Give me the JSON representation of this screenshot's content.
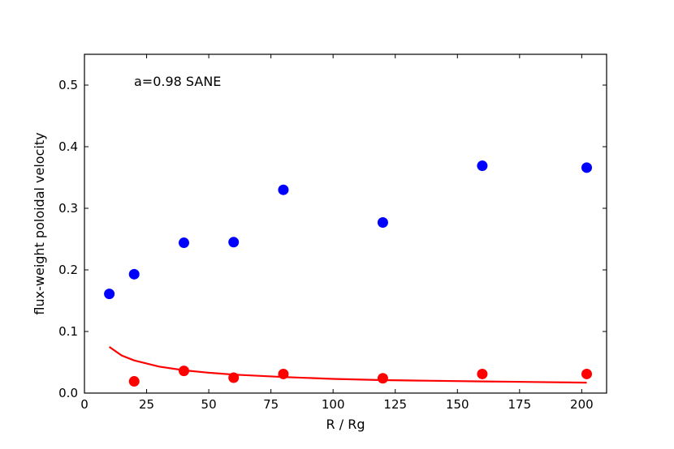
{
  "chart_data": {
    "type": "scatter",
    "xlabel": "R / Rg",
    "ylabel": "flux-weight poloidal velocity",
    "annotation": "a=0.98 SANE",
    "xlim": [
      0,
      210
    ],
    "ylim": [
      0,
      0.55
    ],
    "xticks": [
      0,
      25,
      50,
      75,
      100,
      125,
      150,
      175,
      200
    ],
    "yticks": [
      0.0,
      0.1,
      0.2,
      0.3,
      0.4,
      0.5
    ],
    "xtick_labels": [
      "0",
      "25",
      "50",
      "75",
      "100",
      "125",
      "150",
      "175",
      "200"
    ],
    "ytick_labels": [
      "0.0",
      "0.1",
      "0.2",
      "0.3",
      "0.4",
      "0.5"
    ],
    "grid": false,
    "series": [
      {
        "kind": "scatter",
        "color": "#0000ff",
        "x": [
          10,
          20,
          40,
          60,
          80,
          120,
          160,
          202
        ],
        "y": [
          0.161,
          0.193,
          0.244,
          0.245,
          0.33,
          0.277,
          0.369,
          0.366
        ]
      },
      {
        "kind": "scatter",
        "color": "#ff0000",
        "x": [
          20,
          40,
          60,
          80,
          120,
          160,
          202
        ],
        "y": [
          0.019,
          0.036,
          0.025,
          0.031,
          0.024,
          0.031,
          0.031
        ]
      },
      {
        "kind": "line",
        "color": "#ff0000",
        "x": [
          10,
          15,
          20,
          30,
          40,
          50,
          60,
          80,
          100,
          120,
          140,
          160,
          180,
          202
        ],
        "y": [
          0.075,
          0.061,
          0.053,
          0.043,
          0.037,
          0.033,
          0.03,
          0.026,
          0.023,
          0.021,
          0.02,
          0.019,
          0.018,
          0.017
        ]
      }
    ]
  }
}
